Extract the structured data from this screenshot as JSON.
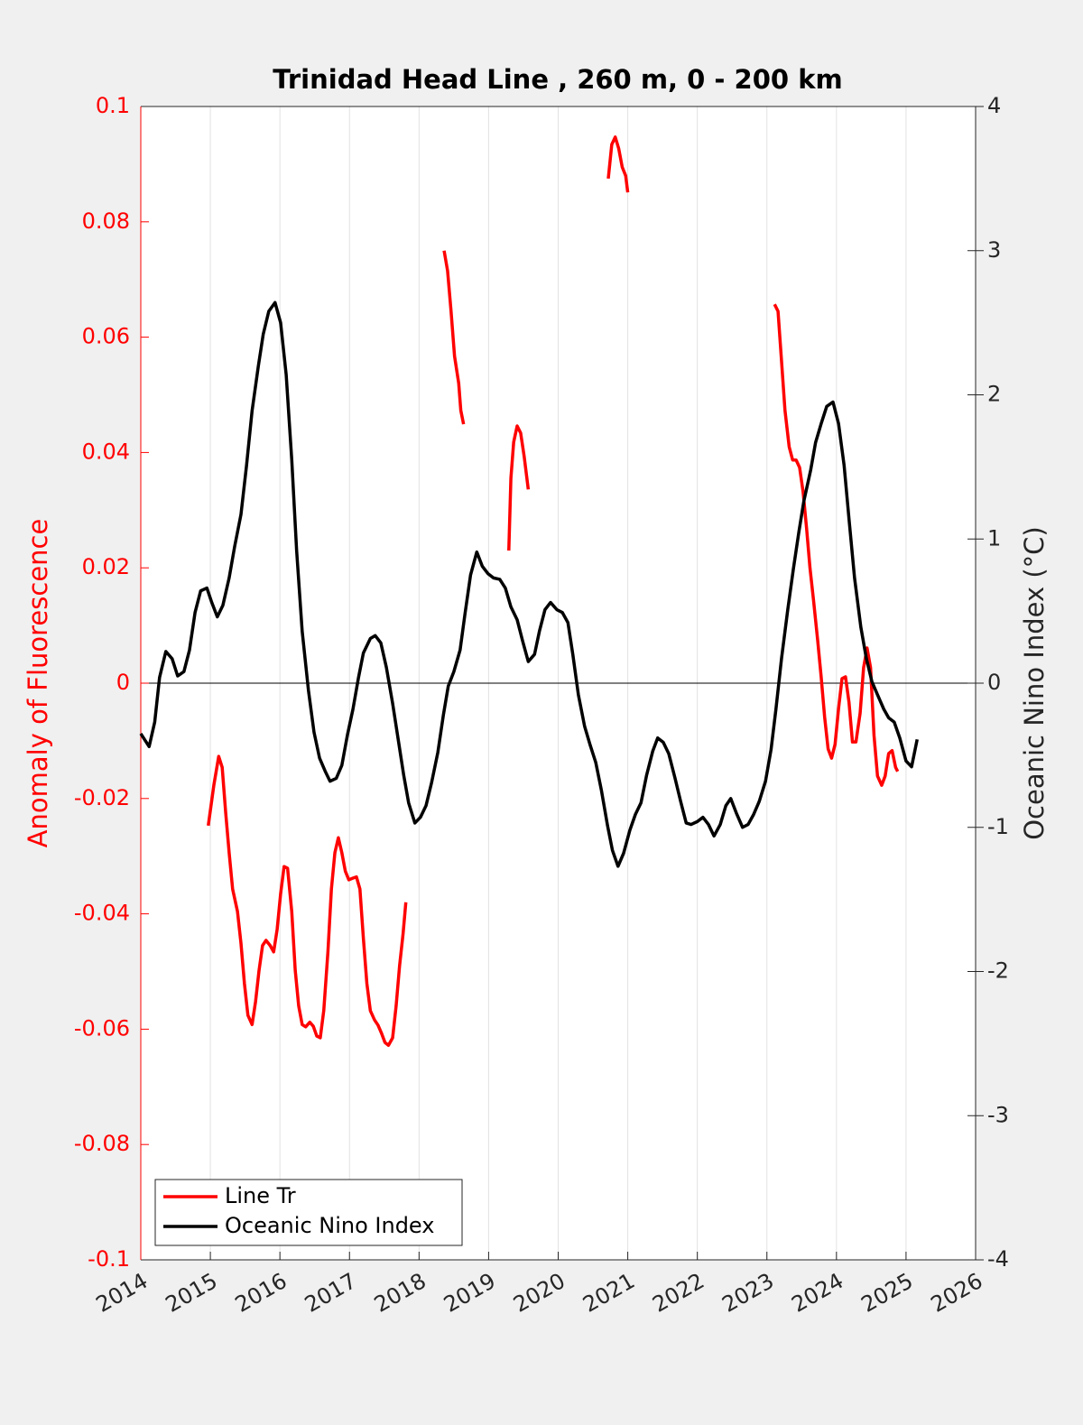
{
  "chart_data": {
    "type": "line",
    "title": "Trinidad Head Line , 260 m, 0 - 200 km",
    "ylabel": "Anomaly of Fluorescence",
    "y2label": "Oceanic Nino Index (°C)",
    "xlim": [
      2014,
      2026
    ],
    "xticks": [
      2014,
      2015,
      2016,
      2017,
      2018,
      2019,
      2020,
      2021,
      2022,
      2023,
      2024,
      2025,
      2026
    ],
    "ylim": [
      -0.1,
      0.1
    ],
    "yticks": [
      -0.1,
      -0.08,
      -0.06,
      -0.04,
      -0.02,
      0,
      0.02,
      0.04,
      0.06,
      0.08,
      0.1
    ],
    "y2lim": [
      -4,
      4
    ],
    "y2ticks": [
      -4,
      -3,
      -2,
      -1,
      0,
      1,
      2,
      3,
      4
    ],
    "xgrid": true,
    "legend": "lower left",
    "series": [
      {
        "name": "Line Tr",
        "color": "#ff0000",
        "axis": "y",
        "x": [
          2014.97,
          2015.05,
          2015.12,
          2015.17,
          2015.22,
          2015.27,
          2015.32,
          2015.39,
          2015.44,
          2015.49,
          2015.54,
          2015.6,
          2015.65,
          2015.7,
          2015.75,
          2015.8,
          2015.86,
          2015.91,
          2015.96,
          2016.01,
          2016.06,
          2016.11,
          2016.17,
          2016.22,
          2016.27,
          2016.32,
          2016.37,
          2016.43,
          2016.48,
          2016.53,
          2016.58,
          2016.63,
          2016.69,
          2016.74,
          2016.79,
          2016.84,
          2016.89,
          2016.94,
          2016.99,
          2017.05,
          2017.1,
          2017.15,
          2017.2,
          2017.25,
          2017.3,
          2017.36,
          2017.41,
          2017.46,
          2017.51,
          2017.56,
          2017.62,
          2017.67,
          2017.72,
          2017.77,
          2017.81,
          2018.1,
          2018.36,
          2018.41,
          2018.46,
          2018.51,
          2018.57,
          2018.6,
          2018.64,
          2018.9,
          2019.29,
          2019.32,
          2019.36,
          2019.41,
          2019.46,
          2019.51,
          2019.57,
          2020.2,
          2020.72,
          2020.77,
          2020.82,
          2020.87,
          2020.92,
          2020.97,
          2021.0,
          2022.5,
          2023.11,
          2023.16,
          2023.21,
          2023.26,
          2023.32,
          2023.37,
          2023.42,
          2023.47,
          2023.52,
          2023.57,
          2023.62,
          2023.67,
          2023.73,
          2023.78,
          2023.83,
          2023.88,
          2023.93,
          2023.98,
          2024.03,
          2024.08,
          2024.13,
          2024.18,
          2024.23,
          2024.28,
          2024.34,
          2024.39,
          2024.44,
          2024.49,
          2024.54,
          2024.59,
          2024.65,
          2024.7,
          2024.75,
          2024.8,
          2024.85,
          2024.88
        ],
        "values": [
          -0.0247,
          -0.0177,
          -0.0127,
          -0.0146,
          -0.0224,
          -0.0294,
          -0.0357,
          -0.0396,
          -0.0451,
          -0.0521,
          -0.0576,
          -0.0592,
          -0.0552,
          -0.0498,
          -0.0455,
          -0.0446,
          -0.0455,
          -0.0466,
          -0.0427,
          -0.0365,
          -0.0318,
          -0.0321,
          -0.0396,
          -0.0498,
          -0.056,
          -0.0592,
          -0.0596,
          -0.0588,
          -0.0595,
          -0.0612,
          -0.0615,
          -0.0568,
          -0.0466,
          -0.0357,
          -0.0294,
          -0.0268,
          -0.0294,
          -0.0326,
          -0.0341,
          -0.0338,
          -0.0336,
          -0.0357,
          -0.0443,
          -0.0521,
          -0.0568,
          -0.0584,
          -0.0593,
          -0.0607,
          -0.0623,
          -0.0628,
          -0.0615,
          -0.056,
          -0.049,
          -0.0435,
          -0.038,
          null,
          0.075,
          0.0715,
          0.0645,
          0.0567,
          0.052,
          0.0473,
          0.0449,
          null,
          0.023,
          0.0355,
          0.0418,
          0.0446,
          0.0434,
          0.0394,
          0.0336,
          null,
          0.0875,
          0.0934,
          0.0947,
          0.0927,
          0.0895,
          0.088,
          0.0851,
          null,
          0.0657,
          0.0645,
          0.0559,
          0.0473,
          0.041,
          0.0387,
          0.0387,
          0.0374,
          0.0332,
          0.0269,
          0.0199,
          0.0144,
          0.0074,
          0.0011,
          -0.0059,
          -0.0114,
          -0.013,
          -0.0106,
          -0.0044,
          0.0008,
          0.0011,
          -0.0033,
          -0.0102,
          -0.0102,
          -0.0052,
          0.0027,
          0.0061,
          0.0027,
          -0.0091,
          -0.0161,
          -0.0177,
          -0.0161,
          -0.0122,
          -0.0117,
          -0.0146,
          -0.0153
        ]
      },
      {
        "name": "Oceanic Nino Index",
        "color": "#000000",
        "axis": "y2",
        "x": [
          2014.0,
          2014.12,
          2014.2,
          2014.27,
          2014.36,
          2014.45,
          2014.53,
          2014.62,
          2014.7,
          2014.78,
          2014.86,
          2014.95,
          2015.02,
          2015.1,
          2015.18,
          2015.27,
          2015.35,
          2015.44,
          2015.52,
          2015.6,
          2015.69,
          2015.76,
          2015.84,
          2015.93,
          2016.01,
          2016.09,
          2016.17,
          2016.24,
          2016.32,
          2016.41,
          2016.49,
          2016.57,
          2016.65,
          2016.72,
          2016.81,
          2016.89,
          2016.97,
          2017.05,
          2017.13,
          2017.2,
          2017.3,
          2017.37,
          2017.45,
          2017.53,
          2017.62,
          2017.7,
          2017.78,
          2017.85,
          2017.94,
          2018.02,
          2018.1,
          2018.18,
          2018.27,
          2018.35,
          2018.42,
          2018.5,
          2018.59,
          2018.66,
          2018.74,
          2018.83,
          2018.91,
          2018.99,
          2019.07,
          2019.16,
          2019.24,
          2019.32,
          2019.41,
          2019.49,
          2019.57,
          2019.66,
          2019.73,
          2019.81,
          2019.89,
          2019.98,
          2020.06,
          2020.14,
          2020.21,
          2020.29,
          2020.38,
          2020.46,
          2020.54,
          2020.62,
          2020.71,
          2020.78,
          2020.86,
          2020.94,
          2021.03,
          2021.11,
          2021.19,
          2021.27,
          2021.36,
          2021.43,
          2021.51,
          2021.59,
          2021.68,
          2021.76,
          2021.84,
          2021.91,
          2022.0,
          2022.08,
          2022.16,
          2022.24,
          2022.33,
          2022.41,
          2022.48,
          2022.56,
          2022.65,
          2022.73,
          2022.81,
          2022.89,
          2022.98,
          2023.06,
          2023.13,
          2023.21,
          2023.3,
          2023.38,
          2023.46,
          2023.53,
          2023.63,
          2023.7,
          2023.78,
          2023.86,
          2023.95,
          2024.03,
          2024.11,
          2024.18,
          2024.26,
          2024.35,
          2024.43,
          2024.51,
          2024.59,
          2024.68,
          2024.75,
          2024.83,
          2024.91,
          2025.0,
          2025.08,
          2025.16
        ],
        "values": [
          -0.35,
          -0.44,
          -0.27,
          0.04,
          0.22,
          0.17,
          0.05,
          0.08,
          0.23,
          0.49,
          0.64,
          0.66,
          0.56,
          0.46,
          0.54,
          0.73,
          0.95,
          1.17,
          1.51,
          1.89,
          2.2,
          2.42,
          2.58,
          2.64,
          2.5,
          2.14,
          1.55,
          0.92,
          0.36,
          -0.05,
          -0.34,
          -0.52,
          -0.61,
          -0.68,
          -0.66,
          -0.57,
          -0.36,
          -0.18,
          0.04,
          0.21,
          0.31,
          0.33,
          0.28,
          0.11,
          -0.14,
          -0.39,
          -0.64,
          -0.83,
          -0.97,
          -0.93,
          -0.85,
          -0.69,
          -0.48,
          -0.22,
          -0.02,
          0.08,
          0.23,
          0.48,
          0.75,
          0.91,
          0.81,
          0.76,
          0.73,
          0.72,
          0.66,
          0.53,
          0.44,
          0.29,
          0.15,
          0.2,
          0.36,
          0.51,
          0.56,
          0.51,
          0.49,
          0.42,
          0.2,
          -0.08,
          -0.3,
          -0.43,
          -0.55,
          -0.74,
          -0.99,
          -1.16,
          -1.27,
          -1.18,
          -1.02,
          -0.91,
          -0.83,
          -0.64,
          -0.47,
          -0.38,
          -0.41,
          -0.49,
          -0.66,
          -0.82,
          -0.97,
          -0.98,
          -0.96,
          -0.93,
          -0.98,
          -1.06,
          -0.98,
          -0.85,
          -0.8,
          -0.9,
          -1.0,
          -0.98,
          -0.91,
          -0.82,
          -0.68,
          -0.46,
          -0.18,
          0.17,
          0.51,
          0.79,
          1.05,
          1.26,
          1.48,
          1.67,
          1.8,
          1.92,
          1.95,
          1.8,
          1.51,
          1.14,
          0.73,
          0.39,
          0.17,
          0.01,
          -0.08,
          -0.18,
          -0.24,
          -0.27,
          -0.38,
          -0.54,
          -0.58,
          -0.39
        ]
      }
    ]
  }
}
